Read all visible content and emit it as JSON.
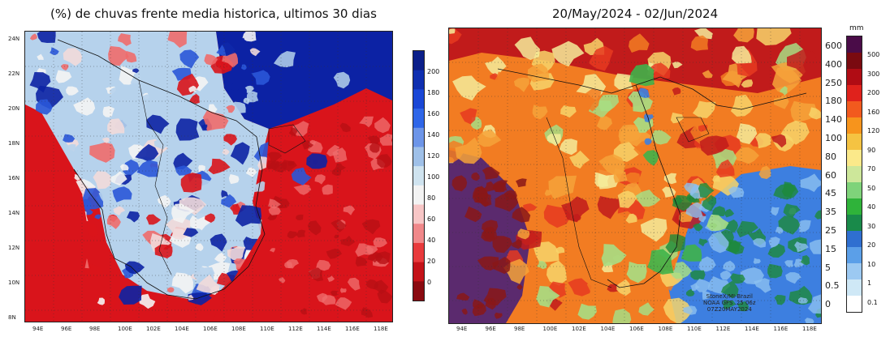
{
  "left_panel": {
    "title": "(%) de chuvas frente media historica, ultimos 30 dias",
    "lon_labels": [
      "94E",
      "96E",
      "98E",
      "100E",
      "102E",
      "104E",
      "106E",
      "108E",
      "110E",
      "112E",
      "114E",
      "116E",
      "118E"
    ],
    "lat_labels": [
      "24N",
      "22N",
      "20N",
      "18N",
      "16N",
      "14N",
      "12N",
      "10N",
      "8N"
    ],
    "colorbar": {
      "labels": [
        "200",
        "180",
        "160",
        "140",
        "120",
        "100",
        "80",
        "60",
        "40",
        "20",
        "0"
      ],
      "colors": [
        "#0b1f8a",
        "#0f2fb0",
        "#1a47d6",
        "#2f66e8",
        "#6d95e8",
        "#9fc0e8",
        "#cfe3ef",
        "#f3f3f3",
        "#f7c6c6",
        "#f0888a",
        "#e83a3c",
        "#c41218",
        "#8a0a10"
      ]
    },
    "palette": {
      "red": "#d9141b",
      "dark_red": "#b80f14",
      "light_red": "#ef6c6c",
      "pale": "#f2dada",
      "white": "#f4f4f4",
      "light_blue": "#b6d2ec",
      "blue": "#2a57d8",
      "navy": "#0c22a4"
    }
  },
  "right_panel": {
    "title": "20/May/2024 - 02/Jun/2024",
    "lon_labels": [
      "94E",
      "96E",
      "98E",
      "100E",
      "102E",
      "104E",
      "106E",
      "108E",
      "110E",
      "112E",
      "114E",
      "116E",
      "118E"
    ],
    "inner_scale_labels": [
      "600",
      "400",
      "250",
      "180",
      "140",
      "100",
      "80",
      "60",
      "45",
      "35",
      "25",
      "15",
      "5",
      "0.5",
      "0"
    ],
    "colorbar": {
      "units": "mm",
      "labels": [
        "500",
        "300",
        "200",
        "160",
        "120",
        "90",
        "70",
        "50",
        "40",
        "30",
        "20",
        "10",
        "1",
        "0.1"
      ],
      "colors": [
        "#4a0c48",
        "#7a0a10",
        "#b00c14",
        "#e0221c",
        "#f25a1e",
        "#f7941c",
        "#f5c342",
        "#fbe98a",
        "#cde79a",
        "#7fd37a",
        "#2fb33a",
        "#198a4a",
        "#2f6fd0",
        "#5b9fe8",
        "#9cc9f2",
        "#cfe8f6",
        "#ffffff"
      ]
    },
    "watermark": [
      "StoneX/MI-Brazil",
      "NOAA GFS .25 06z",
      "07Z20MAY2024"
    ],
    "palette": {
      "purple": "#5b2a6e",
      "maroon": "#8a1818",
      "dark_red": "#c11b1b",
      "red": "#e63a20",
      "orange": "#f27c22",
      "amber": "#f6a33a",
      "yellow": "#f7d56a",
      "pale_yellow": "#f4ec9a",
      "light_green": "#a7de84",
      "green": "#3fb34a",
      "dark_green": "#1d8a3a",
      "blue": "#3d7fe0",
      "light_blue": "#8cc0f0"
    }
  }
}
